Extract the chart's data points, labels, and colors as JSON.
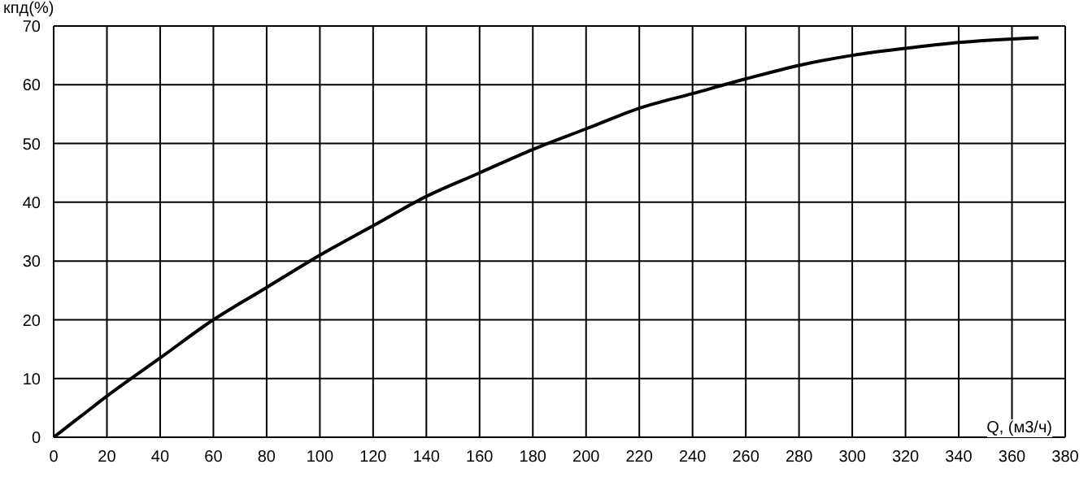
{
  "chart_data": {
    "type": "line",
    "xlabel": "Q, (м3/ч)",
    "ylabel": "кпд(%)",
    "x": [
      0,
      10,
      20,
      40,
      60,
      80,
      100,
      120,
      140,
      160,
      180,
      200,
      220,
      240,
      260,
      280,
      300,
      320,
      340,
      360,
      370
    ],
    "series": [
      {
        "color": "#000000",
        "values": [
          0,
          3.5,
          7,
          13.5,
          20,
          25.5,
          31,
          36,
          41,
          45,
          49,
          52.5,
          56,
          58.5,
          61,
          63.3,
          65,
          66.2,
          67.2,
          67.8,
          68
        ]
      }
    ],
    "xlim": [
      0,
      380
    ],
    "xticks": [
      0,
      20,
      40,
      60,
      80,
      100,
      120,
      140,
      160,
      180,
      200,
      220,
      240,
      260,
      280,
      300,
      320,
      340,
      360,
      380
    ],
    "ylim": [
      0,
      70
    ],
    "yticks": [
      0,
      10,
      20,
      30,
      40,
      50,
      60,
      70
    ],
    "grid": true,
    "marker": "none",
    "line_style": "solid"
  }
}
